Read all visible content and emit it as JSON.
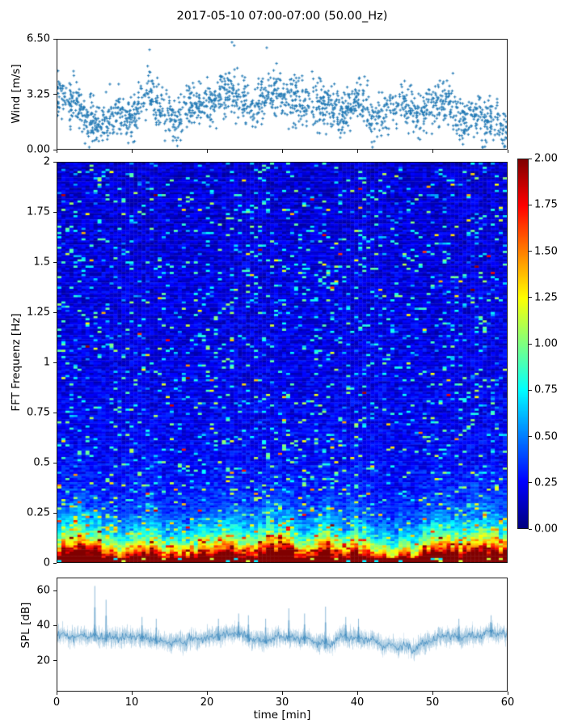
{
  "title": "2017-05-10 07:00-07:00 (50.00_Hz)",
  "colors": {
    "series_blue": "#1f77b4",
    "axis": "#1a1a1a",
    "background": "#ffffff"
  },
  "chart_data": [
    {
      "id": "wind",
      "type": "scatter",
      "title": "",
      "ylabel": "Wind [m/s]",
      "xlabel": "",
      "marker": "+",
      "color": "#1f77b4",
      "xlim": [
        0,
        60
      ],
      "ylim": [
        0,
        6.5
      ],
      "yticks": [
        {
          "v": 0,
          "label": "0.00"
        },
        {
          "v": 3.25,
          "label": "3.25"
        },
        {
          "v": 6.5,
          "label": "6.50"
        }
      ],
      "xtick_positions_min": [
        0,
        10,
        20,
        30,
        40,
        50,
        60
      ],
      "x_step_min": 2,
      "mean_wind_per_2min": [
        3.2,
        2.9,
        1.7,
        1.3,
        2.3,
        1.7,
        3.4,
        2.2,
        1.5,
        2.7,
        2.6,
        3.3,
        3.3,
        2.4,
        3.3,
        3.1,
        3.0,
        2.6,
        2.7,
        1.9,
        3.0,
        1.6,
        2.2,
        2.8,
        2.1,
        2.6,
        2.9,
        1.6,
        2.1,
        1.6,
        1.4
      ],
      "outliers": [
        [
          12.3,
          5.9
        ],
        [
          23.3,
          6.35
        ],
        [
          23.6,
          6.15
        ],
        [
          34.0,
          4.6
        ],
        [
          41.0,
          4.3
        ],
        [
          52.8,
          4.5
        ]
      ],
      "n_points": 1800,
      "spread_ms": 0.62
    },
    {
      "id": "fft",
      "type": "heatmap",
      "title": "",
      "ylabel": "FFT Frequenz [Hz]",
      "xlabel": "",
      "xlim": [
        0,
        60
      ],
      "ylim": [
        0,
        2
      ],
      "vmin": 0,
      "vmax": 2,
      "colormap": "jet",
      "yticks": [
        {
          "v": 0,
          "label": "0"
        },
        {
          "v": 0.25,
          "label": "0.25"
        },
        {
          "v": 0.5,
          "label": "0.5"
        },
        {
          "v": 0.75,
          "label": "0.75"
        },
        {
          "v": 1,
          "label": "1"
        },
        {
          "v": 1.25,
          "label": "1.25"
        },
        {
          "v": 1.5,
          "label": "1.5"
        },
        {
          "v": 1.75,
          "label": "1.75"
        },
        {
          "v": 2,
          "label": "2"
        }
      ],
      "colorbar_ticks": [
        {
          "v": 0,
          "label": "0.00"
        },
        {
          "v": 0.25,
          "label": "0.25"
        },
        {
          "v": 0.5,
          "label": "0.50"
        },
        {
          "v": 0.75,
          "label": "0.75"
        },
        {
          "v": 1,
          "label": "1.00"
        },
        {
          "v": 1.25,
          "label": "1.25"
        },
        {
          "v": 1.5,
          "label": "1.50"
        },
        {
          "v": 1.75,
          "label": "1.75"
        },
        {
          "v": 2,
          "label": "2.00"
        }
      ],
      "band_strength_per_2min": [
        1.05,
        1.3,
        1.25,
        1.05,
        0.85,
        0.9,
        1.1,
        0.85,
        0.75,
        0.9,
        0.95,
        1.05,
        1.1,
        0.9,
        1.2,
        1.25,
        1.0,
        0.95,
        1.25,
        0.85,
        1.05,
        0.8,
        0.7,
        0.75,
        0.7,
        1.2,
        1.2,
        1.0,
        1.3,
        1.2,
        0.95
      ],
      "description": "Energy concentrated below 0.25 Hz (values up to 2, dark red band at 0 Hz); background mostly 0.05-0.45 (blue) with sporadic 0.5-1.2 cyan/green/yellow streaks"
    },
    {
      "id": "spl",
      "type": "line",
      "title": "",
      "ylabel": "SPL [dB]",
      "xlabel": "time [min]",
      "color": "#1f77b4",
      "xlim": [
        0,
        60
      ],
      "ylim": [
        2.2,
        67.4
      ],
      "yticks": [
        {
          "v": 20,
          "label": "20"
        },
        {
          "v": 40,
          "label": "40"
        },
        {
          "v": 60,
          "label": "60"
        }
      ],
      "xticks": [
        {
          "v": 0,
          "label": "0"
        },
        {
          "v": 10,
          "label": "10"
        },
        {
          "v": 20,
          "label": "20"
        },
        {
          "v": 30,
          "label": "30"
        },
        {
          "v": 40,
          "label": "40"
        },
        {
          "v": 50,
          "label": "50"
        },
        {
          "v": 60,
          "label": "60"
        }
      ],
      "mean_spl_per_2min": [
        34,
        34,
        34,
        33,
        33,
        34,
        33,
        31,
        30,
        32,
        33,
        34,
        36,
        32,
        32,
        34,
        33,
        31,
        29,
        34,
        33,
        31,
        28,
        28,
        27,
        32,
        34,
        33,
        34,
        36,
        35
      ],
      "spread_db": 4.3,
      "peaks": [
        [
          5.0,
          63
        ],
        [
          6.5,
          55
        ],
        [
          11.3,
          45
        ],
        [
          13.2,
          44
        ],
        [
          21.5,
          44
        ],
        [
          24.2,
          47
        ],
        [
          25.5,
          46
        ],
        [
          27.8,
          44
        ],
        [
          30.9,
          50
        ],
        [
          33.0,
          47
        ],
        [
          35.8,
          51
        ],
        [
          38.5,
          45
        ],
        [
          40.2,
          44
        ],
        [
          53.6,
          44
        ],
        [
          57.9,
          46
        ]
      ]
    }
  ]
}
